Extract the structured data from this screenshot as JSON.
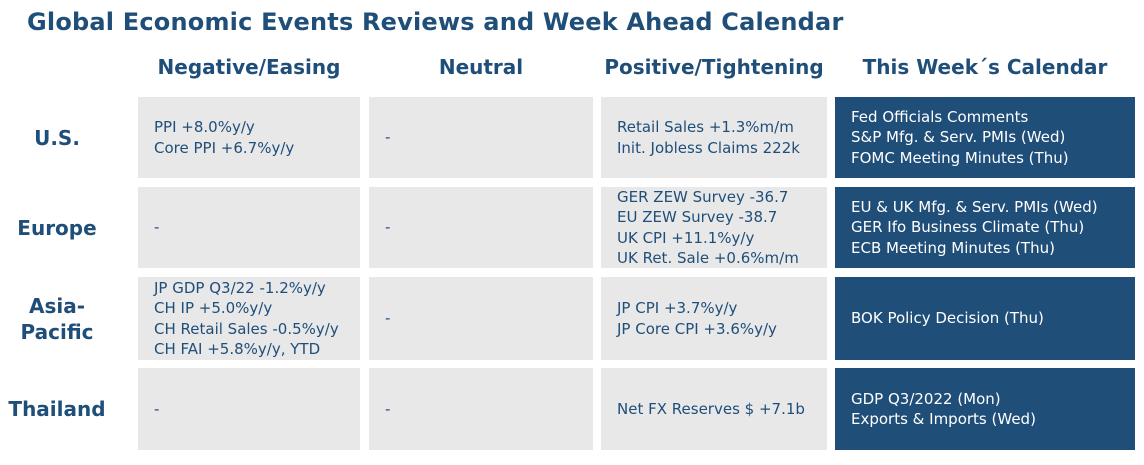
{
  "title": "Global Economic Events Reviews and Week Ahead Calendar",
  "columns": [
    "Negative/Easing",
    "Neutral",
    "Positive/Tightening",
    "This Week´s Calendar"
  ],
  "rows": [
    {
      "region": "U.S.",
      "negative": [
        "PPI +8.0%y/y",
        "Core PPI +6.7%y/y"
      ],
      "neutral": [
        "-"
      ],
      "positive": [
        "Retail Sales +1.3%m/m",
        "Init. Jobless Claims 222k"
      ],
      "calendar": [
        "Fed Officials Comments",
        "S&P Mfg. & Serv. PMIs (Wed)",
        "FOMC Meeting Minutes (Thu)"
      ]
    },
    {
      "region": "Europe",
      "negative": [
        "-"
      ],
      "neutral": [
        "-"
      ],
      "positive": [
        "GER ZEW Survey -36.7",
        "EU ZEW Survey -38.7",
        "UK CPI +11.1%y/y",
        "UK Ret. Sale +0.6%m/m"
      ],
      "calendar": [
        "EU & UK Mfg. & Serv. PMIs (Wed)",
        "GER Ifo Business Climate (Thu)",
        "ECB Meeting Minutes (Thu)"
      ]
    },
    {
      "region": "Asia-Pacific",
      "region_lines": [
        "Asia-",
        "Pacific"
      ],
      "negative": [
        "JP GDP Q3/22 -1.2%y/y",
        "CH IP +5.0%y/y",
        "CH Retail Sales -0.5%y/y",
        "CH FAI +5.8%y/y, YTD"
      ],
      "neutral": [
        "-"
      ],
      "positive": [
        "JP CPI +3.7%y/y",
        "JP Core CPI +3.6%y/y"
      ],
      "calendar": [
        "BOK Policy Decision (Thu)"
      ]
    },
    {
      "region": "Thailand",
      "negative": [
        "-"
      ],
      "neutral": [
        "-"
      ],
      "positive": [
        "Net FX Reserves $ +7.1b"
      ],
      "calendar": [
        "GDP Q3/2022 (Mon)",
        "Exports & Imports (Wed)"
      ]
    }
  ],
  "colors": {
    "navy": "#1f4e79",
    "cell_gray": "#e8e8e9",
    "white": "#ffffff"
  }
}
